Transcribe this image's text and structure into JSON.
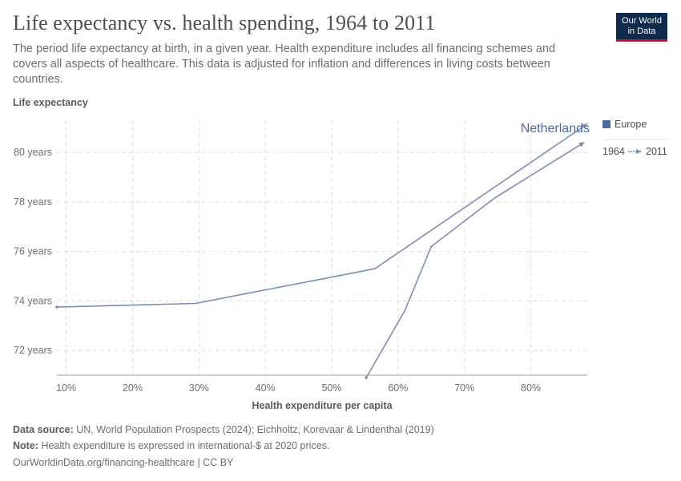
{
  "header": {
    "title": "Life expectancy vs. health spending, 1964 to 2011",
    "subtitle": "The period life expectancy at birth, in a given year. Health expenditure includes all financing schemes and covers all aspects of healthcare. This data is adjusted for inflation and differences in living costs between countries.",
    "logo_line1": "Our World",
    "logo_line2": "in Data"
  },
  "chart_data": {
    "type": "line",
    "title": "Life expectancy vs. health spending, 1964 to 2011",
    "ylabel": "Life expectancy",
    "xlabel": "Health expenditure per capita",
    "xlim": [
      8.6,
      88.5
    ],
    "ylim": [
      71,
      81.3
    ],
    "x_ticks": [
      10,
      20,
      30,
      40,
      50,
      60,
      70,
      80
    ],
    "x_tick_labels": [
      "10%",
      "20%",
      "30%",
      "40%",
      "50%",
      "60%",
      "70%",
      "80%"
    ],
    "y_ticks": [
      72,
      74,
      76,
      78,
      80
    ],
    "y_tick_labels": [
      "72 years",
      "74 years",
      "76 years",
      "78 years",
      "80 years"
    ],
    "grid": true,
    "series": [
      {
        "name": "Netherlands",
        "region": "Europe",
        "color": "#7b8fb3",
        "points": [
          {
            "x": 8.6,
            "y": 73.75
          },
          {
            "x": 29.5,
            "y": 73.9
          },
          {
            "x": 56.5,
            "y": 75.3
          },
          {
            "x": 88.5,
            "y": 81.15
          }
        ]
      },
      {
        "name": "",
        "region": "Europe",
        "color": "#7b8fb3",
        "points": [
          {
            "x": 55.2,
            "y": 70.9
          },
          {
            "x": 61.0,
            "y": 73.6
          },
          {
            "x": 65.0,
            "y": 76.2
          },
          {
            "x": 74.5,
            "y": 78.15
          },
          {
            "x": 88.0,
            "y": 80.4
          }
        ]
      }
    ],
    "line_label": "Netherlands",
    "legend": {
      "position": "right",
      "region_label": "Europe",
      "region_color": "#4c6a9c",
      "start_year": "1964",
      "end_year": "2011"
    }
  },
  "footer": {
    "source_label": "Data source:",
    "source_text": "UN, World Population Prospects (2024); Eichholtz, Korevaar & Lindenthal (2019)",
    "note_label": "Note:",
    "note_text": "Health expenditure is expressed in international-$ at 2020 prices.",
    "credit": "OurWorldinData.org/financing-healthcare | CC BY"
  }
}
